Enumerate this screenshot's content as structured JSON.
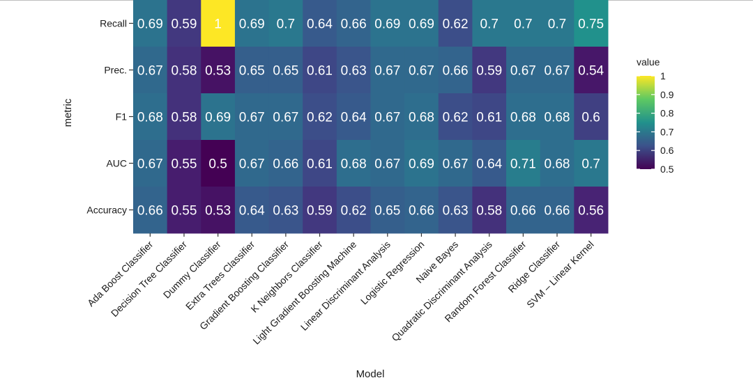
{
  "chart_data": {
    "type": "heatmap",
    "title": "",
    "xlabel": "Model",
    "ylabel": "metric",
    "x_categories": [
      "Ada Boost Classifier",
      "Decision Tree Classifier",
      "Dummy Classifier",
      "Extra Trees Classifier",
      "Gradient Boosting Classifier",
      "K Neighbors Classifier",
      "Light Gradient Boosting Machine",
      "Linear Discriminant Analysis",
      "Logistic Regression",
      "Naive Bayes",
      "Quadratic Discriminant Analysis",
      "Random Forest Classifier",
      "Ridge Classifier",
      "SVM – Linear Kernel"
    ],
    "y_categories": [
      "Recall",
      "Prec.",
      "F1",
      "AUC",
      "Accuracy"
    ],
    "values": [
      [
        0.69,
        0.59,
        1,
        0.69,
        0.7,
        0.64,
        0.66,
        0.69,
        0.69,
        0.62,
        0.7,
        0.7,
        0.7,
        0.75
      ],
      [
        0.67,
        0.58,
        0.53,
        0.65,
        0.65,
        0.61,
        0.63,
        0.67,
        0.67,
        0.66,
        0.59,
        0.67,
        0.67,
        0.54
      ],
      [
        0.68,
        0.58,
        0.69,
        0.67,
        0.67,
        0.62,
        0.64,
        0.67,
        0.68,
        0.62,
        0.61,
        0.68,
        0.68,
        0.6
      ],
      [
        0.67,
        0.55,
        0.5,
        0.67,
        0.66,
        0.61,
        0.68,
        0.67,
        0.69,
        0.67,
        0.64,
        0.71,
        0.68,
        0.7
      ],
      [
        0.66,
        0.55,
        0.53,
        0.64,
        0.63,
        0.59,
        0.62,
        0.65,
        0.66,
        0.63,
        0.58,
        0.66,
        0.66,
        0.56
      ]
    ],
    "color_scale": "viridis",
    "value_range": [
      0.5,
      1
    ],
    "legend": {
      "title": "value",
      "ticks": [
        1,
        0.9,
        0.8,
        0.7,
        0.6,
        0.5
      ],
      "tick_labels": [
        "1",
        "0.9",
        "0.8",
        "0.7",
        "0.6",
        "0.5"
      ],
      "position": "right"
    },
    "grid": false
  }
}
